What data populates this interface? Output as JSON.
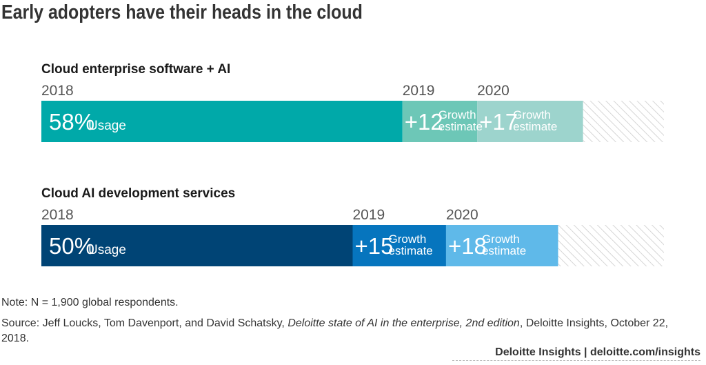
{
  "title": "Early adopters have their heads in the cloud",
  "chart_data": {
    "type": "bar",
    "orientation": "horizontal-stacked",
    "year_labels": [
      "2018",
      "2019",
      "2020"
    ],
    "segment_texts": {
      "usage": "Usage",
      "growth_line1": "Growth",
      "growth_line2": "estimate"
    },
    "rows": [
      {
        "name": "Cloud enterprise software + AI",
        "usage": 58,
        "usage_label": "58%",
        "growth_2019": 12,
        "growth_2019_label": "+12",
        "growth_2020": 17,
        "growth_2020_label": "+17",
        "colors": [
          "#00A9A9",
          "#6DC7B7",
          "#9DD4CD"
        ]
      },
      {
        "name": "Cloud AI development services",
        "usage": 50,
        "usage_label": "50%",
        "growth_2019": 15,
        "growth_2019_label": "+15",
        "growth_2020": 18,
        "growth_2020_label": "+18",
        "colors": [
          "#004475",
          "#0675BE",
          "#5FB9E9"
        ]
      }
    ],
    "xlim": [
      0,
      100
    ],
    "remainder_style": "hatched",
    "grid": false,
    "legend": "none"
  },
  "notes": {
    "note": "Note: N = 1,900 global respondents.",
    "source_prefix": "Source: Jeff Loucks, Tom Davenport, and David Schatsky, ",
    "source_title": "Deloitte state of AI in the enterprise, 2nd edition",
    "source_suffix": ", Deloitte Insights, October 22, 2018."
  },
  "footer": "Deloitte Insights | deloitte.com/insights"
}
